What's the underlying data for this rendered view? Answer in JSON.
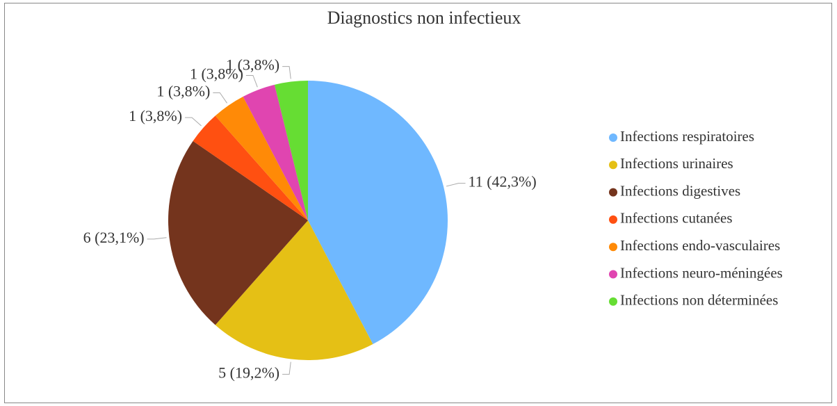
{
  "chart_data": {
    "type": "pie",
    "title": "Diagnostics non infectieux",
    "categories": [
      "Infections respiratoires",
      "Infections urinaires",
      "Infections digestives",
      "Infections cutanées",
      "Infections endo-vasculaires",
      "Infections neuro-méningées",
      "Infections non déterminées"
    ],
    "values": [
      11,
      5,
      6,
      1,
      1,
      1,
      1
    ],
    "value_labels": [
      "11 (42,3%)",
      "5 (19,2%)",
      "6 (23,1%)",
      "1 (3,8%)",
      "1 (3,8%)",
      "1 (3,8%)",
      "1 (3,8%)"
    ],
    "colors": [
      "#6FB8FF",
      "#E5C015",
      "#74341D",
      "#FF5011",
      "#FF8A07",
      "#E045B0",
      "#66DD33"
    ],
    "legend": "right"
  }
}
